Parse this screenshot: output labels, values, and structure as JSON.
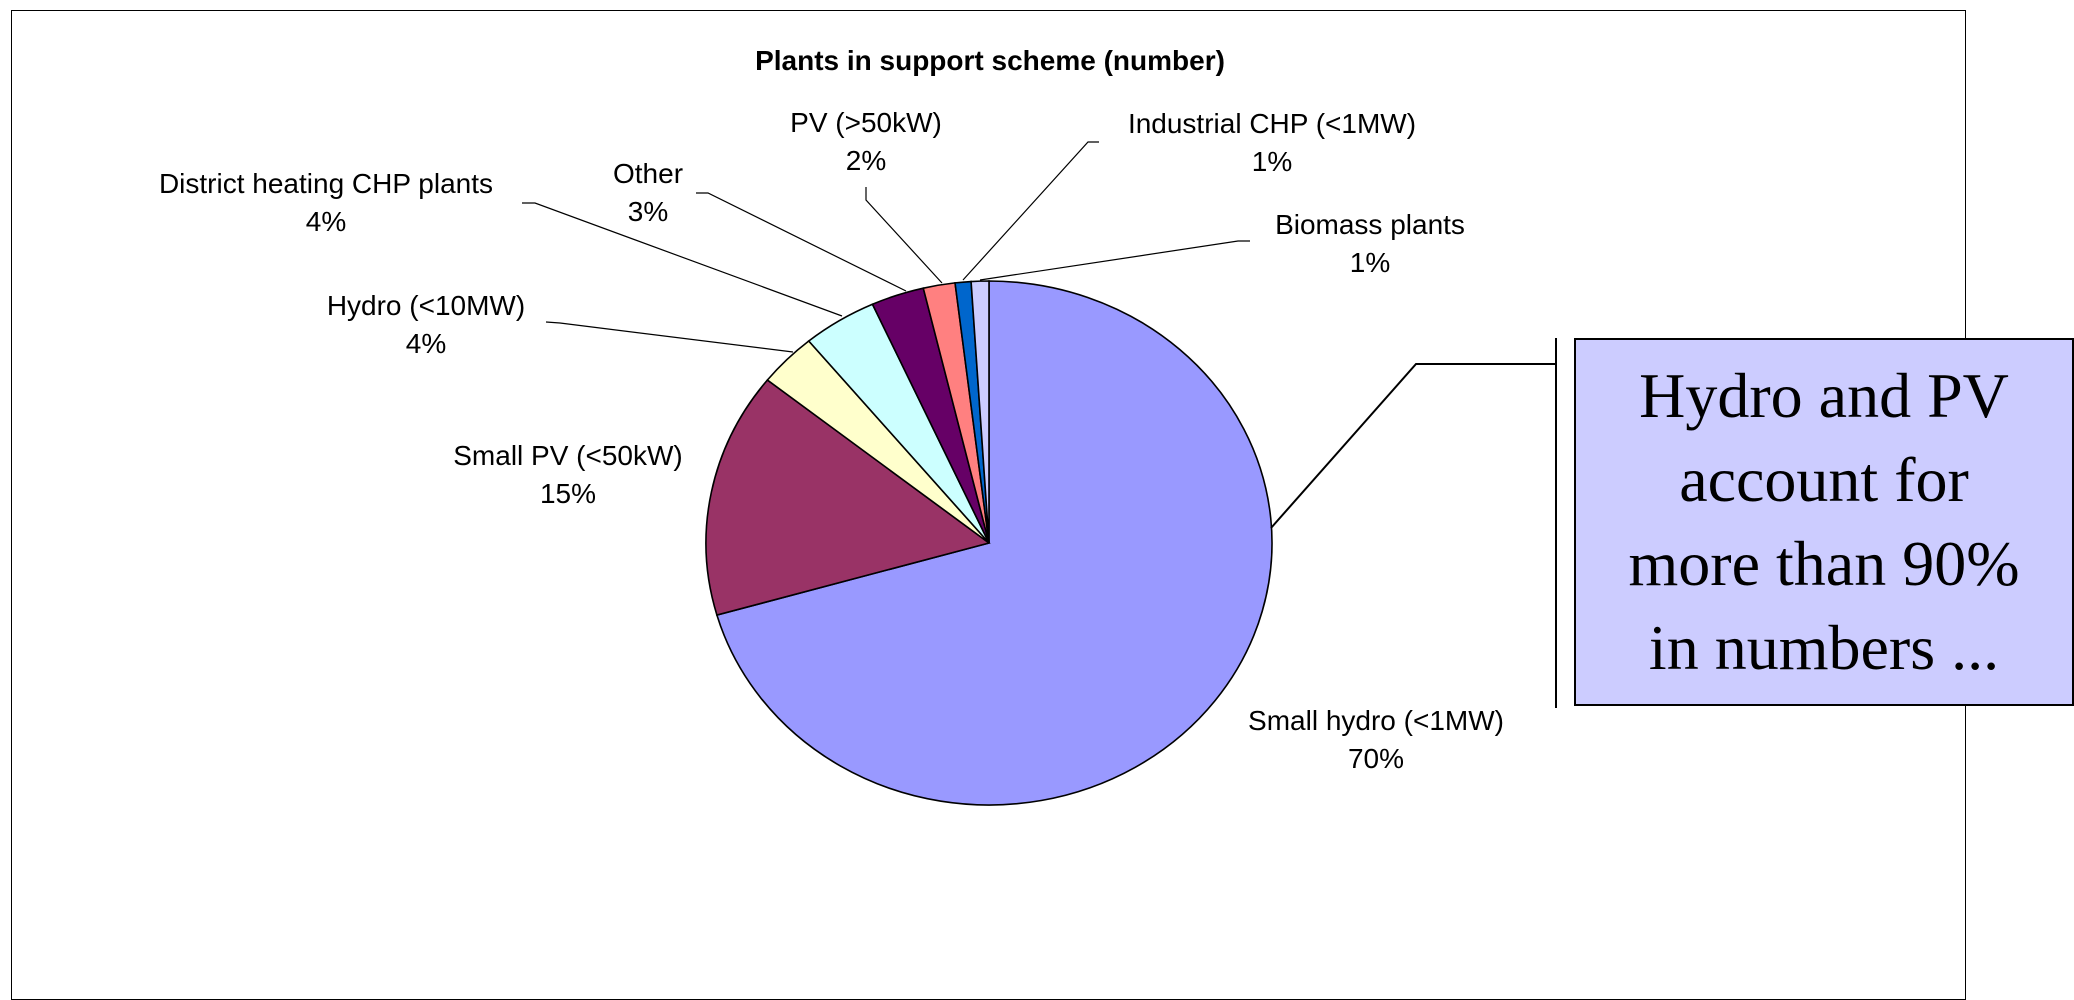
{
  "chart_data": {
    "type": "pie",
    "title": "Plants in support scheme (number)",
    "slices": [
      {
        "label": "Small hydro (<1MW)",
        "pct_label": "70%",
        "value": 70,
        "color": "#9999ff"
      },
      {
        "label": "Small PV (<50kW)",
        "pct_label": "15%",
        "value": 15,
        "color": "#993366"
      },
      {
        "label": "Hydro (<10MW)",
        "pct_label": "4%",
        "value": 3.3,
        "color": "#ffffcc"
      },
      {
        "label": "District heating CHP plants",
        "pct_label": "4%",
        "value": 4.2,
        "color": "#ccffff"
      },
      {
        "label": "Other",
        "pct_label": "3%",
        "value": 3,
        "color": "#660066"
      },
      {
        "label": "PV (>50kW)",
        "pct_label": "2%",
        "value": 1.8,
        "color": "#ff8080"
      },
      {
        "label": "Industrial CHP (<1MW)",
        "pct_label": "1%",
        "value": 0.9,
        "color": "#0066cc"
      },
      {
        "label": "Biomass plants",
        "pct_label": "1%",
        "value": 1.0,
        "color": "#ccccff"
      }
    ]
  },
  "callout": {
    "text": "Hydro and PV\naccount for\nmore than 90%\nin numbers ..."
  }
}
